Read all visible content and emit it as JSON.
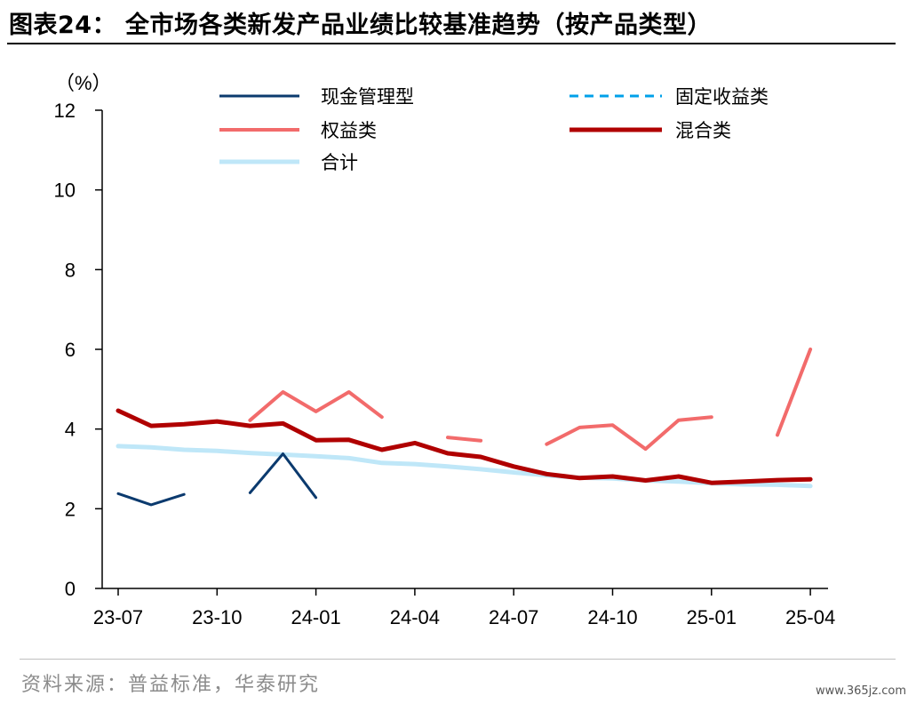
{
  "figure": {
    "title": "图表24：  全市场各类新发产品业绩比较基准趋势（按产品类型）",
    "source": "资料来源：普益标准，华泰研究",
    "watermark": "www.365jz.com"
  },
  "chart_data": {
    "type": "line",
    "unit_label": "（%）",
    "ylim": [
      0,
      12
    ],
    "yticks": [
      "0",
      "2",
      "4",
      "6",
      "8",
      "10",
      "12"
    ],
    "x": [
      "23-07",
      "23-08",
      "23-09",
      "23-10",
      "23-11",
      "23-12",
      "24-01",
      "24-02",
      "24-03",
      "24-04",
      "24-05",
      "24-06",
      "24-07",
      "24-08",
      "24-09",
      "24-10",
      "24-11",
      "24-12",
      "25-01",
      "25-02",
      "25-03",
      "25-04"
    ],
    "xtick_labels": [
      "23-07",
      "23-10",
      "24-01",
      "24-04",
      "24-07",
      "24-10",
      "25-01",
      "25-04"
    ],
    "legend_position": "top",
    "grid": false,
    "series": [
      {
        "name": "现金管理型",
        "color": "#0b3a6e",
        "dash": "solid",
        "width": 3,
        "values": [
          2.38,
          2.1,
          2.36,
          null,
          2.4,
          3.38,
          2.28,
          null,
          null,
          null,
          null,
          null,
          null,
          null,
          null,
          null,
          null,
          null,
          null,
          null,
          null,
          null
        ]
      },
      {
        "name": "固定收益类",
        "color": "#00a0e9",
        "dash": "dashed",
        "width": 3,
        "values": [
          null,
          null,
          null,
          null,
          null,
          null,
          null,
          null,
          null,
          null,
          null,
          null,
          null,
          null,
          null,
          null,
          null,
          null,
          null,
          null,
          null,
          null
        ]
      },
      {
        "name": "权益类",
        "color": "#f26b6b",
        "dash": "solid",
        "width": 4,
        "values": [
          null,
          null,
          null,
          null,
          4.22,
          4.93,
          4.44,
          4.93,
          4.3,
          null,
          3.79,
          3.71,
          null,
          3.62,
          4.04,
          4.1,
          3.5,
          4.22,
          4.3,
          null,
          3.85,
          6.0
        ]
      },
      {
        "name": "混合类",
        "color": "#b00000",
        "dash": "solid",
        "width": 5,
        "values": [
          4.46,
          4.08,
          4.12,
          4.19,
          4.08,
          4.14,
          3.72,
          3.73,
          3.48,
          3.65,
          3.39,
          3.3,
          3.06,
          2.87,
          2.77,
          2.81,
          2.71,
          2.81,
          2.65,
          2.68,
          2.72,
          2.74
        ]
      },
      {
        "name": "合计",
        "color": "#bfe7f8",
        "dash": "solid",
        "width": 5,
        "values": [
          3.57,
          3.54,
          3.48,
          3.45,
          3.4,
          3.36,
          3.32,
          3.27,
          3.15,
          3.12,
          3.06,
          2.99,
          2.91,
          2.84,
          2.78,
          2.76,
          2.71,
          2.68,
          2.64,
          2.61,
          2.6,
          2.57
        ]
      }
    ]
  }
}
